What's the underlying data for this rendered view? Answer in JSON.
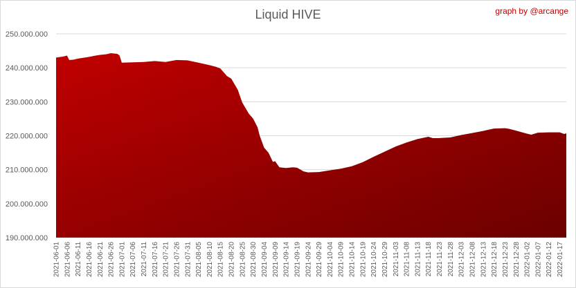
{
  "chart_data": {
    "type": "area",
    "title": "Liquid HIVE",
    "credit": "graph by @arcange",
    "xlabel": "",
    "ylabel": "",
    "ylim": [
      190000000,
      250000000
    ],
    "grid": true,
    "legend": "none",
    "colors": {
      "fill_top": "#c00000",
      "fill_bottom": "#6b0000",
      "title": "#595959",
      "credit": "#c00000",
      "grid": "#d9d9d9"
    },
    "y_ticks": [
      "190.000.000",
      "200.000.000",
      "210.000.000",
      "220.000.000",
      "230.000.000",
      "240.000.000",
      "250.000.000"
    ],
    "y_tick_values": [
      190000000,
      200000000,
      210000000,
      220000000,
      230000000,
      240000000,
      250000000
    ],
    "x_ticks": [
      "2021-06-01",
      "2021-06-06",
      "2021-06-11",
      "2021-06-16",
      "2021-06-21",
      "2021-06-26",
      "2021-07-01",
      "2021-07-06",
      "2021-07-11",
      "2021-07-16",
      "2021-07-21",
      "2021-07-26",
      "2021-07-31",
      "2021-08-05",
      "2021-08-10",
      "2021-08-15",
      "2021-08-20",
      "2021-08-25",
      "2021-08-30",
      "2021-09-04",
      "2021-09-09",
      "2021-09-14",
      "2021-09-19",
      "2021-09-24",
      "2021-09-29",
      "2021-10-04",
      "2021-10-09",
      "2021-10-14",
      "2021-10-19",
      "2021-10-24",
      "2021-10-29",
      "2021-11-03",
      "2021-11-08",
      "2021-11-13",
      "2021-11-18",
      "2021-11-23",
      "2021-11-28",
      "2021-12-03",
      "2021-12-08",
      "2021-12-13",
      "2021-12-18",
      "2021-12-23",
      "2021-12-28",
      "2022-01-02",
      "2022-01-07",
      "2022-01-12",
      "2022-01-17"
    ],
    "series": [
      {
        "x": [
          "2021-06-01",
          "2021-06-04",
          "2021-06-06",
          "2021-06-07",
          "2021-06-09",
          "2021-06-11",
          "2021-06-14",
          "2021-06-16",
          "2021-06-19",
          "2021-06-21",
          "2021-06-24",
          "2021-06-26",
          "2021-06-29",
          "2021-06-30",
          "2021-07-01",
          "2021-07-06",
          "2021-07-11",
          "2021-07-16",
          "2021-07-21",
          "2021-07-26",
          "2021-07-31",
          "2021-08-05",
          "2021-08-10",
          "2021-08-13",
          "2021-08-15",
          "2021-08-18",
          "2021-08-20",
          "2021-08-23",
          "2021-08-25",
          "2021-08-28",
          "2021-08-30",
          "2021-09-01",
          "2021-09-02",
          "2021-09-04",
          "2021-09-06",
          "2021-09-08",
          "2021-09-09",
          "2021-09-11",
          "2021-09-14",
          "2021-09-17",
          "2021-09-19",
          "2021-09-22",
          "2021-09-24",
          "2021-09-29",
          "2021-10-04",
          "2021-10-09",
          "2021-10-14",
          "2021-10-19",
          "2021-10-24",
          "2021-10-29",
          "2021-11-03",
          "2021-11-08",
          "2021-11-13",
          "2021-11-18",
          "2021-11-20",
          "2021-11-23",
          "2021-11-28",
          "2021-12-03",
          "2021-12-08",
          "2021-12-13",
          "2021-12-15",
          "2021-12-18",
          "2021-12-23",
          "2021-12-25",
          "2021-12-28",
          "2022-01-02",
          "2022-01-04",
          "2022-01-07",
          "2022-01-12",
          "2022-01-17",
          "2022-01-19",
          "2022-01-20"
        ],
        "values": [
          243000000,
          243300000,
          243600000,
          242300000,
          242400000,
          242700000,
          243000000,
          243200000,
          243600000,
          243800000,
          244000000,
          244300000,
          244100000,
          243600000,
          241500000,
          241600000,
          241700000,
          242000000,
          241700000,
          242300000,
          242200000,
          241500000,
          240800000,
          240300000,
          239800000,
          237600000,
          236800000,
          233500000,
          229800000,
          226500000,
          225000000,
          222500000,
          220000000,
          216500000,
          215000000,
          212300000,
          212500000,
          210700000,
          210500000,
          210700000,
          210600000,
          209500000,
          209200000,
          209300000,
          209800000,
          210300000,
          211000000,
          212200000,
          213800000,
          215300000,
          216800000,
          218000000,
          219000000,
          219700000,
          219300000,
          219300000,
          219500000,
          220200000,
          220800000,
          221400000,
          221700000,
          222100000,
          222200000,
          222000000,
          221500000,
          220600000,
          220300000,
          220900000,
          221000000,
          221000000,
          220500000,
          220700000
        ]
      }
    ]
  }
}
